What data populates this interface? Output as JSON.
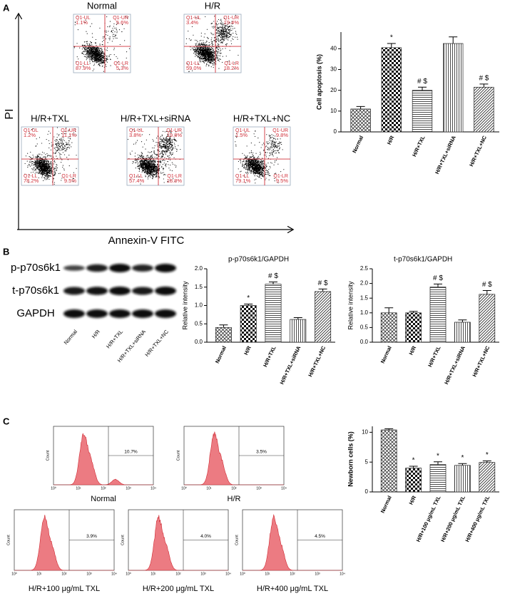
{
  "panels": {
    "a": "A",
    "b": "B",
    "c": "C"
  },
  "flow": {
    "y_label": "PI",
    "x_label": "Annexin-V FITC",
    "quadrant_names": [
      "Q1-UL",
      "Q1-UR",
      "Q1-LL",
      "Q1-LR"
    ],
    "plots": [
      {
        "title": "Normal",
        "ul": "1.1%",
        "ur": "5.6%",
        "ll": "87.9%",
        "lr": "5.3%"
      },
      {
        "title": "H/R",
        "ul": "3.4%",
        "ur": "19.4%",
        "ll": "59.0%",
        "lr": "18.2%"
      },
      {
        "title": "H/R+TXL",
        "ul": "1.2%",
        "ur": "11.1%",
        "ll": "78.2%",
        "lr": "9.5%"
      },
      {
        "title": "H/R+TXL+siRNA",
        "ul": "3.8%",
        "ur": "19.8%",
        "ll": "57.4%",
        "lr": "18.8%"
      },
      {
        "title": "H/R+TXL+NC",
        "ul": "1.5%",
        "ur": "9.8%",
        "ll": "79.1%",
        "lr": "9.5%"
      }
    ]
  },
  "blot": {
    "rows": [
      "p-p70s6k1",
      "t-p70s6k1",
      "GAPDH"
    ],
    "lanes": [
      "Normal",
      "H/R",
      "H/R+TXL",
      "H/R+TXL+siRNA",
      "H/R+TXL+NC"
    ]
  },
  "histograms": {
    "axis_label": "Count",
    "ticks": [
      "10⁰",
      "10¹",
      "10²",
      "10³",
      "10⁴"
    ],
    "plots": [
      {
        "title": "Normal",
        "gate": "10.7%"
      },
      {
        "title": "H/R",
        "gate": "3.5%"
      },
      {
        "title": "H/R+100 μg/mL TXL",
        "gate": "3.9%"
      },
      {
        "title": "H/R+200 μg/mL TXL",
        "gate": "4.0%"
      },
      {
        "title": "H/R+400 μg/mL TXL",
        "gate": "4.5%"
      }
    ]
  },
  "chart_data": [
    {
      "type": "bar",
      "y_label": "Cell apoptosis (%)",
      "categories": [
        "Normal",
        "H/R",
        "H/R+TXL",
        "H/R+TXL+siRNA",
        "H/R+TXL+NC"
      ],
      "values": [
        11,
        40.5,
        20,
        42.5,
        21.5
      ],
      "errors": [
        1.2,
        2,
        1.5,
        3.2,
        1.5
      ],
      "annotations": [
        null,
        "*",
        "# $",
        null,
        "# $"
      ],
      "ylim": [
        0,
        48
      ],
      "yticks": [
        0,
        10,
        20,
        30,
        40
      ]
    },
    {
      "type": "bar",
      "title": "p-p70s6k1/GAPDH",
      "y_label": "Relative intensity",
      "categories": [
        "Normal",
        "H/R",
        "H/R+TXL",
        "H/R+TXL+siRNA",
        "H/R+TXL+NC"
      ],
      "values": [
        0.4,
        1.0,
        1.58,
        0.62,
        1.38
      ],
      "errors": [
        0.07,
        0.04,
        0.06,
        0.05,
        0.07
      ],
      "annotations": [
        null,
        "*",
        "# $",
        null,
        "# $"
      ],
      "ylim": [
        0,
        2
      ],
      "yticks": [
        {
          "value": 0,
          "label": "0.0"
        },
        {
          "value": 0.5,
          "label": "0.5"
        },
        {
          "value": 1,
          "label": "1.0"
        },
        {
          "value": 1.5,
          "label": "1.5"
        },
        {
          "value": 2,
          "label": "2.0"
        }
      ]
    },
    {
      "type": "bar",
      "title": "t-p70s6k1/GAPDH",
      "y_label": "Relative intensity",
      "categories": [
        "Normal",
        "H/R",
        "H/R+TXL",
        "H/R+TXL+siRNA",
        "H/R+TXL+NC"
      ],
      "values": [
        1.0,
        1.0,
        1.88,
        0.68,
        1.63
      ],
      "errors": [
        0.17,
        0.05,
        0.1,
        0.08,
        0.13
      ],
      "annotations": [
        null,
        null,
        "# $",
        null,
        "# $"
      ],
      "ylim": [
        0,
        2.5
      ],
      "yticks": [
        {
          "value": 0,
          "label": "0.0"
        },
        {
          "value": 0.5,
          "label": "0.5"
        },
        {
          "value": 1,
          "label": "1.0"
        },
        {
          "value": 1.5,
          "label": "1.5"
        },
        {
          "value": 2,
          "label": "2.0"
        },
        {
          "value": 2.5,
          "label": "2.5"
        }
      ]
    },
    {
      "type": "bar",
      "y_label": "Newborn cells (%)",
      "categories": [
        "Normal",
        "H/R",
        "H/R+100 μg/mL TXL",
        "H/R+200 μg/mL TXL",
        "H/R+400 μg/mL TXL"
      ],
      "values": [
        10.4,
        4.0,
        4.6,
        4.45,
        4.95
      ],
      "errors": [
        0.2,
        0.3,
        0.45,
        0.3,
        0.25
      ],
      "annotations": [
        null,
        "*",
        "*",
        "*",
        "*"
      ],
      "ylim": [
        0,
        11
      ],
      "yticks": [
        0,
        5,
        10
      ]
    }
  ]
}
